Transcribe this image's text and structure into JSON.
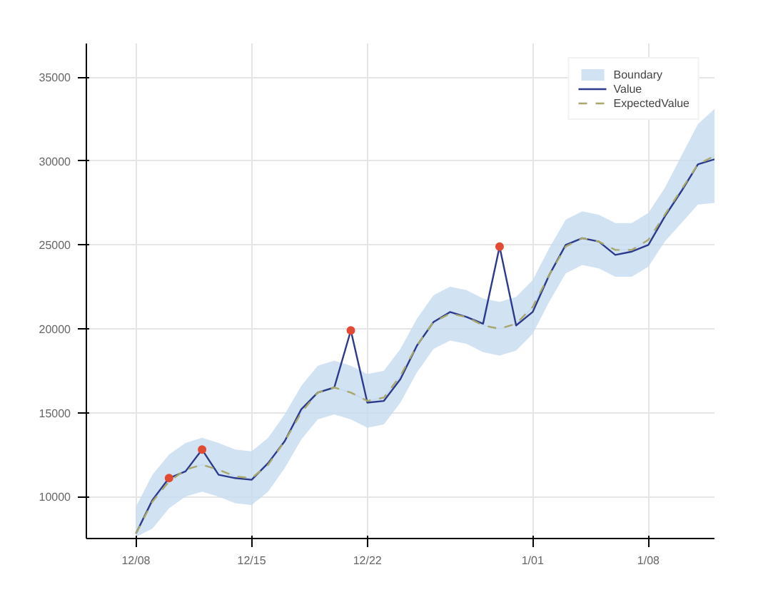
{
  "chart_data": {
    "type": "line",
    "categories": [
      null,
      null,
      null,
      "12/08",
      null,
      null,
      null,
      null,
      null,
      null,
      "12/15",
      null,
      null,
      null,
      null,
      null,
      null,
      "12/22",
      null,
      null,
      null,
      null,
      null,
      null,
      null,
      null,
      null,
      "1/01",
      null,
      null,
      null,
      null,
      null,
      null,
      "1/08",
      null,
      null,
      null,
      null
    ],
    "series": [
      {
        "name": "Boundary",
        "color": "#c6dbef",
        "values": [
          null,
          null,
          null,
          7800,
          9700,
          10900,
          11600,
          11900,
          11600,
          11200,
          11100,
          11900,
          13300,
          15000,
          16200,
          16500,
          16200,
          15700,
          15900,
          17200,
          19000,
          20400,
          20900,
          20700,
          20200,
          20000,
          20300,
          21300,
          23200,
          24900,
          25400,
          25200,
          24700,
          24700,
          25300,
          26800,
          28300,
          29800,
          30300
        ],
        "lower": [
          null,
          null,
          null,
          7600,
          8100,
          9300,
          10000,
          10300,
          10000,
          9600,
          9500,
          10300,
          11700,
          13400,
          14600,
          14900,
          14600,
          14100,
          14300,
          15600,
          17400,
          18800,
          19300,
          19100,
          18600,
          18400,
          18700,
          19700,
          21600,
          23300,
          23800,
          23600,
          23100,
          23100,
          23700,
          25200,
          26300,
          27400,
          27500
        ],
        "upper": [
          null,
          null,
          null,
          9400,
          11300,
          12500,
          13200,
          13500,
          13200,
          12800,
          12700,
          13500,
          14900,
          16600,
          17800,
          18100,
          17800,
          17300,
          17500,
          18800,
          20600,
          22000,
          22500,
          22300,
          21800,
          21600,
          21900,
          22900,
          24800,
          26500,
          27000,
          26800,
          26300,
          26300,
          26900,
          28400,
          30300,
          32200,
          33100
        ]
      },
      {
        "name": "Value",
        "color": "#2c3a8c",
        "line_style": "solid",
        "values": [
          null,
          null,
          null,
          7800,
          9800,
          11100,
          11500,
          12800,
          11300,
          11100,
          11000,
          12000,
          13300,
          15200,
          16200,
          16500,
          19900,
          15600,
          15700,
          17000,
          19000,
          20400,
          21000,
          20700,
          20300,
          24900,
          20200,
          21000,
          23200,
          25000,
          25400,
          25200,
          24400,
          24600,
          25000,
          26700,
          28200,
          29800,
          30100
        ]
      },
      {
        "name": "ExpectedValue",
        "color": "#a9a86a",
        "line_style": "dashed",
        "values": [
          null,
          null,
          null,
          7800,
          9700,
          10900,
          11600,
          11900,
          11600,
          11200,
          11100,
          11900,
          13300,
          15000,
          16200,
          16500,
          16200,
          15700,
          15900,
          17200,
          19000,
          20400,
          20900,
          20700,
          20200,
          20000,
          20300,
          21300,
          23200,
          24900,
          25400,
          25200,
          24700,
          24700,
          25300,
          26800,
          28300,
          29800,
          30300
        ]
      },
      {
        "type": "scatter",
        "color": "#e34a33",
        "marker": "circle",
        "values": [
          null,
          null,
          null,
          null,
          null,
          11100,
          null,
          12800,
          null,
          null,
          null,
          null,
          null,
          null,
          null,
          null,
          19900,
          null,
          null,
          null,
          null,
          null,
          null,
          null,
          null,
          24900,
          null,
          null,
          null,
          null,
          null,
          null,
          null,
          null,
          null,
          null,
          null,
          null,
          null
        ]
      }
    ],
    "ylim": [
      7500,
      37000
    ],
    "yticks": [
      10000,
      15000,
      20000,
      25000,
      30000,
      35000
    ],
    "grid": true,
    "legend": "top right"
  }
}
